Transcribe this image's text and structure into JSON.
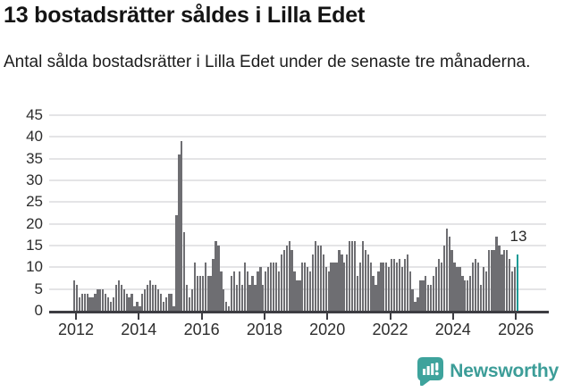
{
  "header": {
    "title": "13 bostadsrätter såldes i Lilla Edet",
    "subtitle": "Antal sålda bostadsrätter i Lilla Edet under de senaste tre månaderna."
  },
  "chart_data": {
    "type": "bar",
    "title": "13 bostadsrätter såldes i Lilla Edet",
    "subtitle": "Antal sålda bostadsrätter i Lilla Edet under de senaste tre månaderna.",
    "frequency": "monthly",
    "x_start": "2012-01",
    "x_end": "2026-02",
    "x_tick_labels": [
      "2012",
      "2014",
      "2016",
      "2018",
      "2020",
      "2022",
      "2024",
      "2026"
    ],
    "y_ticks": [
      0,
      5,
      10,
      15,
      20,
      25,
      30,
      35,
      40,
      45
    ],
    "ylim": [
      0,
      45
    ],
    "grid": true,
    "legend": false,
    "bar_color": "#6e6e72",
    "highlight_color": "#169a96",
    "values": [
      7,
      6,
      3,
      4,
      4,
      4,
      3,
      3,
      4,
      5,
      5,
      5,
      4,
      3,
      2,
      3,
      6,
      7,
      6,
      5,
      4,
      3,
      4,
      1,
      2,
      1,
      4,
      5,
      6,
      7,
      6,
      6,
      5,
      4,
      2,
      3,
      4,
      4,
      1,
      22,
      36,
      39,
      18,
      6,
      3,
      5,
      11,
      8,
      8,
      8,
      11,
      8,
      8,
      12,
      16,
      15,
      9,
      5,
      2,
      1,
      8,
      9,
      6,
      9,
      6,
      11,
      9,
      6,
      8,
      6,
      9,
      10,
      6,
      9,
      10,
      11,
      11,
      11,
      9,
      13,
      14,
      15,
      16,
      14,
      9,
      7,
      7,
      11,
      11,
      10,
      9,
      13,
      16,
      15,
      15,
      13,
      10,
      9,
      11,
      11,
      11,
      14,
      13,
      11,
      13,
      16,
      16,
      16,
      8,
      11,
      16,
      14,
      13,
      11,
      8,
      6,
      9,
      11,
      11,
      11,
      10,
      12,
      12,
      11,
      12,
      10,
      12,
      13,
      9,
      5,
      2,
      3,
      7,
      7,
      8,
      6,
      6,
      8,
      10,
      12,
      11,
      15,
      19,
      17,
      14,
      11,
      10,
      10,
      8,
      7,
      7,
      8,
      11,
      12,
      11,
      6,
      10,
      9,
      14,
      14,
      14,
      17,
      15,
      13,
      14,
      14,
      12,
      9,
      10,
      13
    ],
    "highlight": {
      "index": 169,
      "value": 13,
      "label": "13"
    }
  },
  "footer": {
    "brand": "Newsworthy",
    "logo_icon": "newsworthy-bubble-chart-icon",
    "brand_color": "#3c9d98"
  }
}
